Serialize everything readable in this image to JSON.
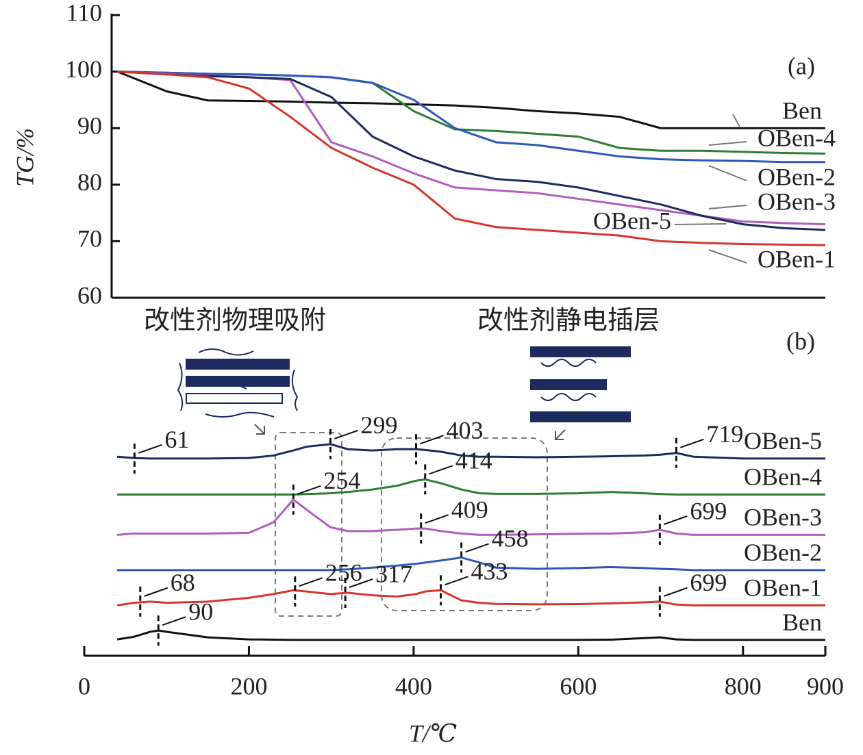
{
  "chart_data": [
    {
      "type": "line",
      "label": "(a)",
      "ylabel": "TG/%",
      "x": [
        40,
        100,
        150,
        200,
        250,
        300,
        350,
        400,
        450,
        500,
        550,
        600,
        650,
        700,
        750,
        800,
        850,
        900
      ],
      "xlim": [
        33,
        900
      ],
      "ylim": [
        60,
        110
      ],
      "yticks": [
        60,
        70,
        80,
        90,
        100,
        110
      ],
      "series": [
        {
          "name": "Ben",
          "color": "#111111",
          "values": [
            100,
            96.5,
            94.9,
            94.8,
            94.7,
            94.5,
            94.4,
            94.2,
            94,
            93.6,
            93,
            92.6,
            92,
            90,
            90,
            90,
            90,
            90
          ]
        },
        {
          "name": "OBen-4",
          "color": "#2e7d32",
          "values": [
            100,
            99.8,
            99.6,
            99.5,
            99.3,
            99,
            98,
            93,
            89.8,
            89.5,
            89,
            88.5,
            86.5,
            86,
            86,
            85.8,
            85.6,
            85.5
          ]
        },
        {
          "name": "OBen-2",
          "color": "#2f56b8",
          "values": [
            100,
            99.8,
            99.6,
            99.5,
            99.3,
            99,
            98,
            95,
            90,
            87.5,
            87,
            86,
            85,
            84.5,
            84.3,
            84.2,
            84,
            84
          ]
        },
        {
          "name": "OBen-3",
          "color": "#b05cc0",
          "values": [
            100,
            99.6,
            99.3,
            99,
            98.5,
            87.5,
            85,
            82,
            79.5,
            79,
            78.5,
            77.5,
            76.5,
            75.5,
            74.5,
            73.5,
            73.2,
            73
          ]
        },
        {
          "name": "OBen-5",
          "color": "#1c2a5e",
          "values": [
            100,
            99.5,
            99.2,
            99,
            98.7,
            95.5,
            88.5,
            85,
            82.5,
            81,
            80.5,
            79.5,
            78,
            76.5,
            74.5,
            73,
            72.3,
            72
          ]
        },
        {
          "name": "OBen-1",
          "color": "#d8352a",
          "values": [
            100,
            99.5,
            99,
            97,
            92,
            86.5,
            83,
            80,
            74,
            72.5,
            72,
            71.5,
            71,
            70,
            69.7,
            69.5,
            69.4,
            69.3
          ]
        }
      ]
    },
    {
      "type": "line",
      "label": "(b)",
      "xlabel": "T/℃",
      "annotations": [
        "改性剂物理吸附",
        "改性剂静电插层"
      ],
      "x": [
        40,
        60,
        80,
        90,
        100,
        150,
        200,
        230,
        254,
        270,
        299,
        320,
        350,
        380,
        403,
        414,
        433,
        458,
        480,
        500,
        550,
        600,
        640,
        680,
        699,
        719,
        740,
        800,
        900
      ],
      "xlim": [
        0,
        900
      ],
      "xticks": [
        0,
        200,
        400,
        600,
        800,
        900
      ],
      "ylim": [
        0,
        100
      ],
      "series": [
        {
          "name": "OBen-5",
          "color": "#1c2a5e",
          "peaks": [
            61,
            299,
            403,
            719
          ],
          "values": [
            79,
            78.5,
            78.3,
            78.3,
            78.3,
            78.3,
            78.5,
            79.5,
            81.5,
            83,
            84,
            82,
            81.5,
            82,
            82,
            81.7,
            81,
            79.5,
            79,
            79,
            78.8,
            79,
            79.2,
            79.5,
            79.8,
            80.5,
            79,
            78.3,
            78.3
          ]
        },
        {
          "name": "OBen-4",
          "color": "#2e7d32",
          "peaks": [
            414
          ],
          "values": [
            64,
            64,
            64,
            64,
            64,
            64,
            64,
            64,
            64,
            64.2,
            64.5,
            65,
            66,
            67.5,
            69.5,
            70,
            68.5,
            66,
            64.5,
            64.3,
            64.3,
            64.5,
            65,
            64.5,
            64.2,
            64,
            64,
            64,
            64
          ]
        },
        {
          "name": "OBen-3",
          "color": "#b05cc0",
          "peaks": [
            254,
            409,
            699
          ],
          "values": [
            48,
            48.5,
            48.5,
            48.5,
            48.5,
            48.5,
            48.8,
            53,
            62,
            58,
            51,
            49.5,
            49.5,
            50,
            50.5,
            50.5,
            49.5,
            48.5,
            48,
            48,
            48.2,
            48.4,
            48.5,
            49,
            50,
            48.5,
            48,
            48,
            48
          ]
        },
        {
          "name": "OBen-2",
          "color": "#2f56b8",
          "peaks": [
            458
          ],
          "values": [
            34,
            34,
            34,
            34,
            34,
            34,
            34,
            34,
            34,
            34,
            34,
            34.3,
            35,
            35.8,
            36.5,
            37,
            37.8,
            39,
            37,
            35,
            34.5,
            34.8,
            35.2,
            34.8,
            34.5,
            34.3,
            34,
            34,
            34
          ]
        },
        {
          "name": "OBen-1",
          "color": "#d8352a",
          "peaks": [
            68,
            256,
            317,
            433,
            699
          ],
          "values": [
            20,
            21,
            21.5,
            21.3,
            21,
            21.5,
            23,
            24.5,
            26,
            25.5,
            24.5,
            25,
            24,
            23.5,
            24.5,
            25.5,
            26,
            22,
            21,
            20.6,
            20.4,
            20.5,
            20.8,
            21.2,
            21.5,
            20.3,
            20,
            20,
            20
          ]
        },
        {
          "name": "Ben",
          "color": "#111111",
          "peaks": [
            90
          ],
          "values": [
            6.5,
            7.5,
            9.5,
            10,
            9.5,
            7.3,
            6.5,
            6.4,
            6.3,
            6.3,
            6.3,
            6.3,
            6.3,
            6.3,
            6.3,
            6.3,
            6.3,
            6.3,
            6.3,
            6.3,
            6.3,
            6.3,
            6.4,
            7,
            7.3,
            6.5,
            6.3,
            6.3,
            6.3
          ]
        }
      ]
    }
  ]
}
